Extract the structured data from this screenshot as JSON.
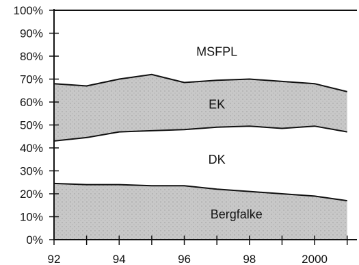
{
  "chart_data": {
    "type": "area",
    "stacked": true,
    "x": [
      1992,
      1993,
      1994,
      1995,
      1996,
      1997,
      1998,
      1999,
      2000,
      2001
    ],
    "x_tick_values": [
      1992,
      1994,
      1996,
      1998,
      2000
    ],
    "x_tick_labels": [
      "92",
      "94",
      "96",
      "98",
      "2000"
    ],
    "ylim": [
      0,
      100
    ],
    "y_tick_values": [
      0,
      10,
      20,
      30,
      40,
      50,
      60,
      70,
      80,
      90,
      100
    ],
    "y_tick_labels": [
      "0%",
      "10%",
      "20%",
      "30%",
      "40%",
      "50%",
      "60%",
      "70%",
      "80%",
      "90%",
      "100%"
    ],
    "series": [
      {
        "name": "Bergfalke",
        "values": [
          24.5,
          24,
          24,
          23.5,
          23.5,
          22,
          21,
          20,
          19,
          17
        ],
        "fill": "#c8c8c8"
      },
      {
        "name": "DK",
        "values": [
          18.5,
          20.5,
          23,
          24,
          24.5,
          27,
          28.5,
          28.5,
          30.5,
          30
        ],
        "fill": "#ffffff"
      },
      {
        "name": "EK",
        "values": [
          25,
          22.5,
          23,
          24.5,
          20.5,
          20.5,
          20.5,
          20.5,
          18.5,
          17.5
        ],
        "fill": "#c8c8c8"
      },
      {
        "name": "MSFPL",
        "values": [
          32,
          33,
          30,
          28,
          31.5,
          30.5,
          30,
          31,
          32,
          35.5
        ],
        "fill": "#ffffff"
      }
    ],
    "label_positions": {
      "Bergfalke": {
        "x": 1997.6,
        "y": 11
      },
      "DK": {
        "x": 1997.0,
        "y": 35
      },
      "EK": {
        "x": 1997.0,
        "y": 59
      },
      "MSFPL": {
        "x": 1997.0,
        "y": 82
      }
    }
  }
}
